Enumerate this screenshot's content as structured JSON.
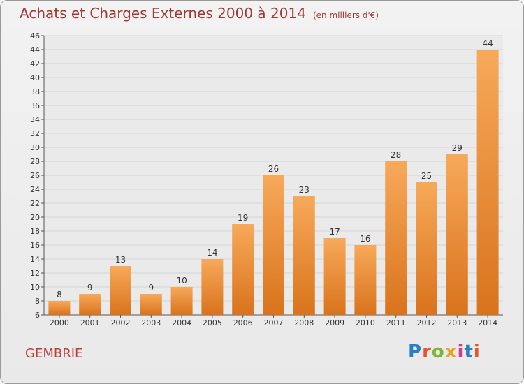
{
  "header": {
    "title": "Achats et Charges Externes 2000 à 2014",
    "subtitle": "(en milliers d'€)"
  },
  "footer": {
    "location": "GEMBRIE",
    "brand": "Proxiti"
  },
  "colors": {
    "bar_light": "#f7a95a",
    "bar_dark": "#d9731c",
    "title": "#a13a34",
    "grid": "#d4d4d4"
  },
  "chart_data": {
    "type": "bar",
    "title": "Achats et Charges Externes 2000 à 2014",
    "subtitle": "(en milliers d'€)",
    "categories": [
      "2000",
      "2001",
      "2002",
      "2003",
      "2004",
      "2005",
      "2006",
      "2007",
      "2008",
      "2009",
      "2010",
      "2011",
      "2012",
      "2013",
      "2014"
    ],
    "values": [
      8,
      9,
      13,
      9,
      10,
      14,
      19,
      26,
      23,
      17,
      16,
      28,
      25,
      29,
      44
    ],
    "ylim": [
      6,
      46
    ],
    "yticks": [
      6,
      8,
      10,
      12,
      14,
      16,
      18,
      20,
      22,
      24,
      26,
      28,
      30,
      32,
      34,
      36,
      38,
      40,
      42,
      44,
      46
    ],
    "grid": true,
    "data_labels": true
  }
}
